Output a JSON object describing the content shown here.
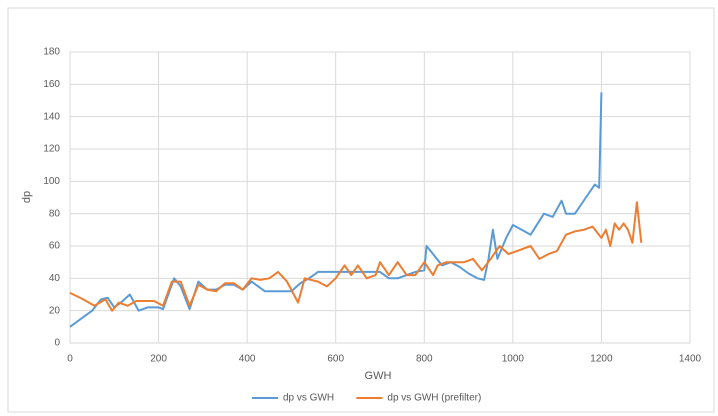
{
  "chart_data": {
    "type": "line",
    "x_label": "GWH",
    "y_label": "dp",
    "xlim": [
      0,
      1400
    ],
    "xticks": [
      0,
      200,
      400,
      600,
      800,
      1000,
      1200,
      1400
    ],
    "ylim": [
      0,
      180
    ],
    "yticks": [
      0,
      20,
      40,
      60,
      80,
      100,
      120,
      140,
      160,
      180
    ],
    "grid": true,
    "legend": "bottom",
    "series": [
      {
        "name": "dp vs GWH",
        "color": "#5b9bd5",
        "x": [
          0,
          50,
          70,
          85,
          100,
          115,
          135,
          155,
          175,
          200,
          210,
          235,
          250,
          270,
          290,
          310,
          330,
          350,
          370,
          390,
          410,
          440,
          470,
          500,
          520,
          540,
          560,
          580,
          600,
          620,
          640,
          660,
          680,
          700,
          720,
          740,
          760,
          780,
          800,
          805,
          820,
          840,
          860,
          880,
          900,
          920,
          935,
          945,
          955,
          965,
          985,
          1000,
          1020,
          1040,
          1070,
          1090,
          1110,
          1120,
          1140,
          1165,
          1185,
          1195,
          1200
        ],
        "values": [
          10,
          20,
          27,
          28,
          22,
          25,
          30,
          20,
          22,
          22,
          21,
          40,
          35,
          21,
          38,
          33,
          33,
          36,
          36,
          33,
          38,
          32,
          32,
          32,
          37,
          40,
          44,
          44,
          44,
          44,
          44,
          44,
          44,
          44,
          40,
          40,
          42,
          44,
          45,
          60,
          55,
          48,
          50,
          47,
          43,
          40,
          39,
          52,
          70,
          52,
          65,
          73,
          70,
          67,
          80,
          78,
          88,
          80,
          80,
          90,
          98,
          96,
          155
        ]
      },
      {
        "name": "dp vs GWH (prefilter)",
        "color": "#ed7d31",
        "x": [
          0,
          30,
          55,
          80,
          95,
          110,
          130,
          150,
          170,
          190,
          210,
          230,
          250,
          270,
          290,
          310,
          330,
          350,
          370,
          390,
          410,
          430,
          450,
          470,
          490,
          515,
          530,
          560,
          580,
          600,
          620,
          635,
          650,
          670,
          690,
          700,
          720,
          740,
          760,
          780,
          800,
          820,
          830,
          850,
          870,
          890,
          910,
          930,
          950,
          970,
          990,
          1010,
          1040,
          1060,
          1080,
          1100,
          1120,
          1140,
          1160,
          1180,
          1200,
          1210,
          1220,
          1230,
          1240,
          1250,
          1260,
          1270,
          1280,
          1290
        ],
        "values": [
          31,
          27,
          23,
          27,
          20,
          25,
          23,
          26,
          26,
          26,
          23,
          38,
          38,
          23,
          36,
          33,
          32,
          37,
          37,
          33,
          40,
          39,
          40,
          44,
          38,
          25,
          40,
          38,
          35,
          40,
          48,
          42,
          48,
          40,
          42,
          50,
          42,
          50,
          42,
          42,
          50,
          42,
          48,
          50,
          50,
          50,
          52,
          45,
          52,
          60,
          55,
          57,
          60,
          52,
          55,
          57,
          67,
          69,
          70,
          72,
          65,
          70,
          60,
          74,
          70,
          74,
          70,
          62,
          87,
          62
        ]
      }
    ]
  }
}
